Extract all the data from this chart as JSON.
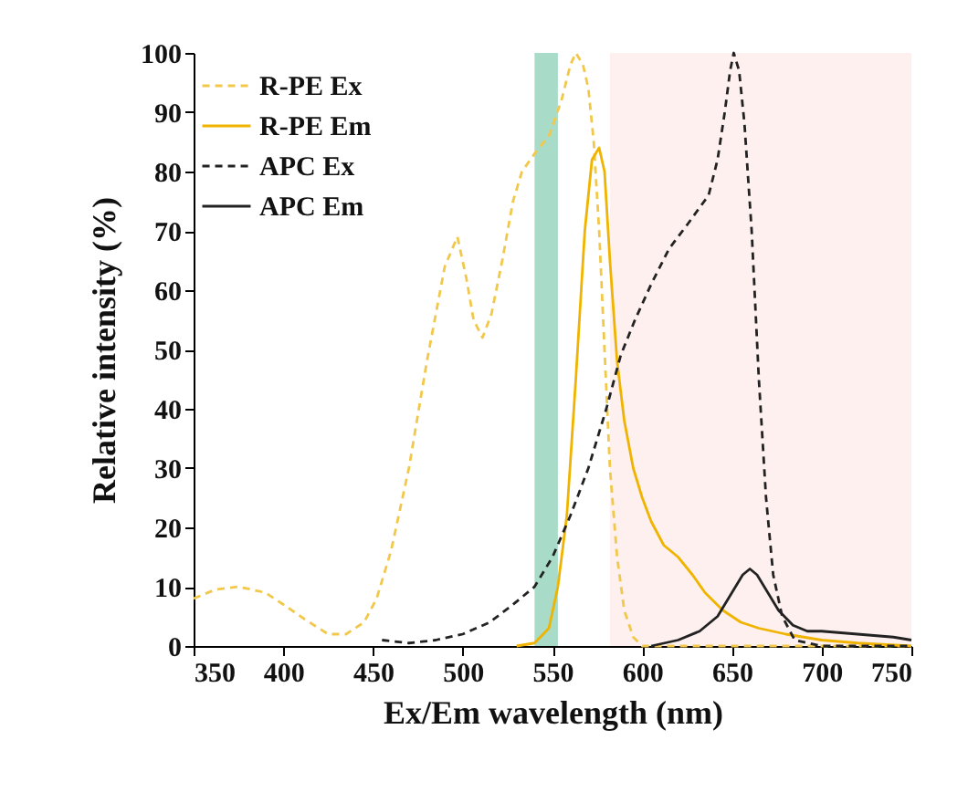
{
  "chart_data": {
    "type": "line",
    "xlabel": "Ex/Em wavelength (nm)",
    "ylabel": "Relative intensity  (%)",
    "xlim": [
      350,
      750
    ],
    "xticks": [
      350,
      400,
      450,
      500,
      550,
      600,
      650,
      700,
      750
    ],
    "ylim": [
      0,
      100
    ],
    "yticks": [
      0,
      10,
      20,
      30,
      40,
      50,
      60,
      70,
      80,
      90,
      100
    ],
    "grid": false,
    "legend": "top left",
    "marker": "none",
    "bands": [
      {
        "axis": "x",
        "from": 540,
        "to": 553,
        "color": "#a8dcc8"
      },
      {
        "axis": "x",
        "from": 582,
        "to": 750,
        "color": "#fdf0ee"
      }
    ],
    "series": [
      {
        "name": "R-PE Ex",
        "color": "#f2c84b",
        "line_style": "dashed",
        "x": [
          350,
          362,
          375,
          390,
          400,
          412,
          425,
          435,
          445,
          452,
          460,
          470,
          480,
          490,
          497,
          502,
          506,
          511,
          516,
          522,
          528,
          533,
          540,
          548,
          555,
          560,
          563,
          567,
          570,
          573,
          576,
          579,
          582,
          586,
          590,
          595,
          600,
          650,
          700,
          750
        ],
        "values": [
          8,
          9.5,
          10,
          9,
          7,
          4.5,
          2,
          2,
          4,
          8,
          16,
          30,
          48,
          64,
          69,
          62,
          55,
          52,
          56,
          65,
          75,
          80,
          83,
          86,
          92,
          98,
          100,
          98,
          94,
          85,
          70,
          50,
          30,
          15,
          6,
          1.5,
          0,
          0,
          0,
          0
        ]
      },
      {
        "name": "R-PE Em",
        "color": "#f0b400",
        "line_style": "solid",
        "x": [
          530,
          540,
          548,
          553,
          558,
          563,
          568,
          572,
          576,
          579,
          582,
          586,
          590,
          595,
          600,
          605,
          612,
          620,
          628,
          635,
          645,
          655,
          665,
          680,
          700,
          720,
          750
        ],
        "values": [
          0,
          0.5,
          3,
          10,
          22,
          45,
          70,
          82,
          84,
          80,
          65,
          48,
          38,
          30,
          25,
          21,
          17,
          15,
          12,
          9,
          6,
          4,
          3,
          2,
          1,
          0.5,
          0
        ]
      },
      {
        "name": "APC Ex",
        "color": "#222222",
        "line_style": "dashed",
        "x": [
          455,
          470,
          485,
          500,
          515,
          528,
          540,
          550,
          560,
          570,
          580,
          588,
          596,
          605,
          615,
          625,
          637,
          642,
          646,
          649,
          651,
          654,
          657,
          661,
          665,
          669,
          673,
          678,
          685,
          700,
          750
        ],
        "values": [
          1,
          0.5,
          1,
          2,
          4,
          7,
          10,
          15,
          22,
          30,
          40,
          49,
          55,
          61,
          67,
          71,
          76,
          82,
          90,
          97,
          100,
          97,
          88,
          70,
          45,
          25,
          12,
          5,
          1,
          0,
          0
        ]
      },
      {
        "name": "APC Em",
        "color": "#222222",
        "line_style": "solid",
        "x": [
          605,
          620,
          632,
          642,
          650,
          656,
          660,
          664,
          670,
          676,
          684,
          692,
          700,
          720,
          740,
          750
        ],
        "values": [
          0,
          1,
          2.5,
          5,
          9,
          12,
          13,
          12,
          9,
          6,
          3.5,
          2.5,
          2.5,
          2,
          1.5,
          1
        ]
      }
    ]
  }
}
